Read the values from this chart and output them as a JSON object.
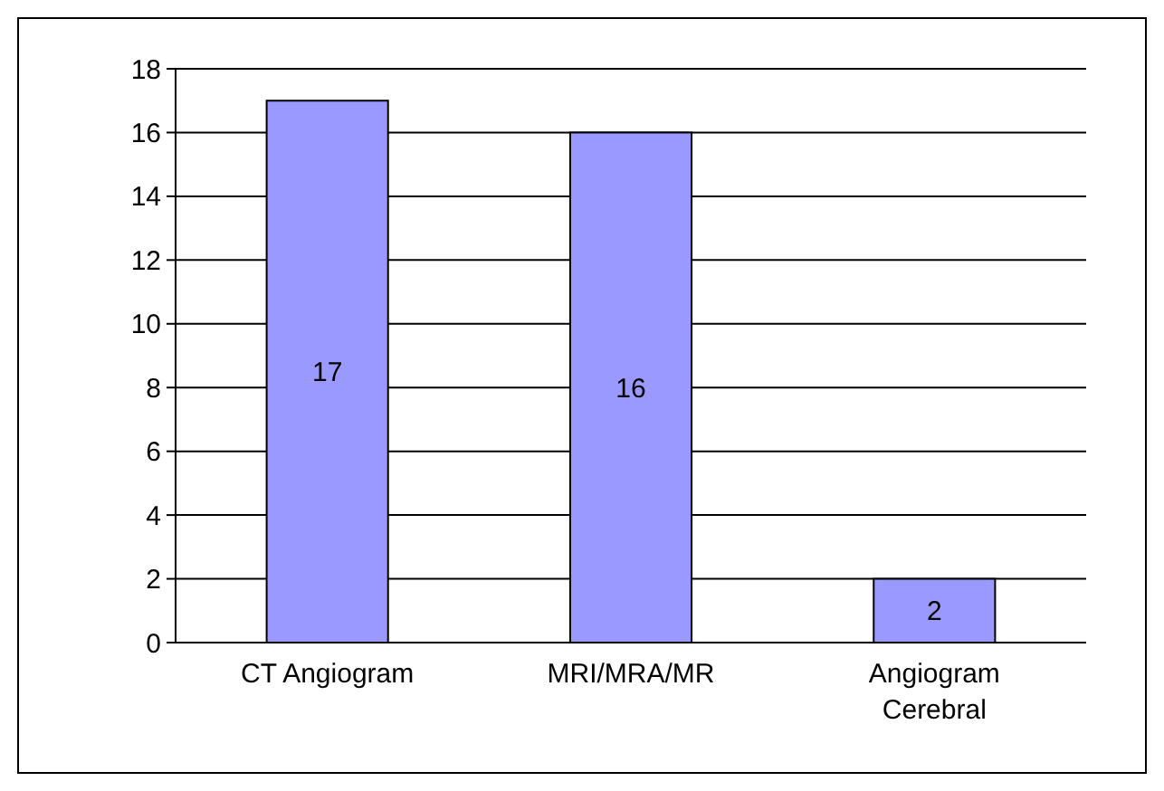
{
  "chart_data": {
    "type": "bar",
    "categories": [
      "CT Angiogram",
      "MRI/MRA/MR",
      "Angiogram Cerebral"
    ],
    "values": [
      17,
      16,
      2
    ],
    "color": "#9999ff",
    "ylim": [
      0,
      18
    ],
    "yticks": [
      0,
      2,
      4,
      6,
      8,
      10,
      12,
      14,
      16,
      18
    ],
    "grid": "y",
    "data_labels": true
  }
}
